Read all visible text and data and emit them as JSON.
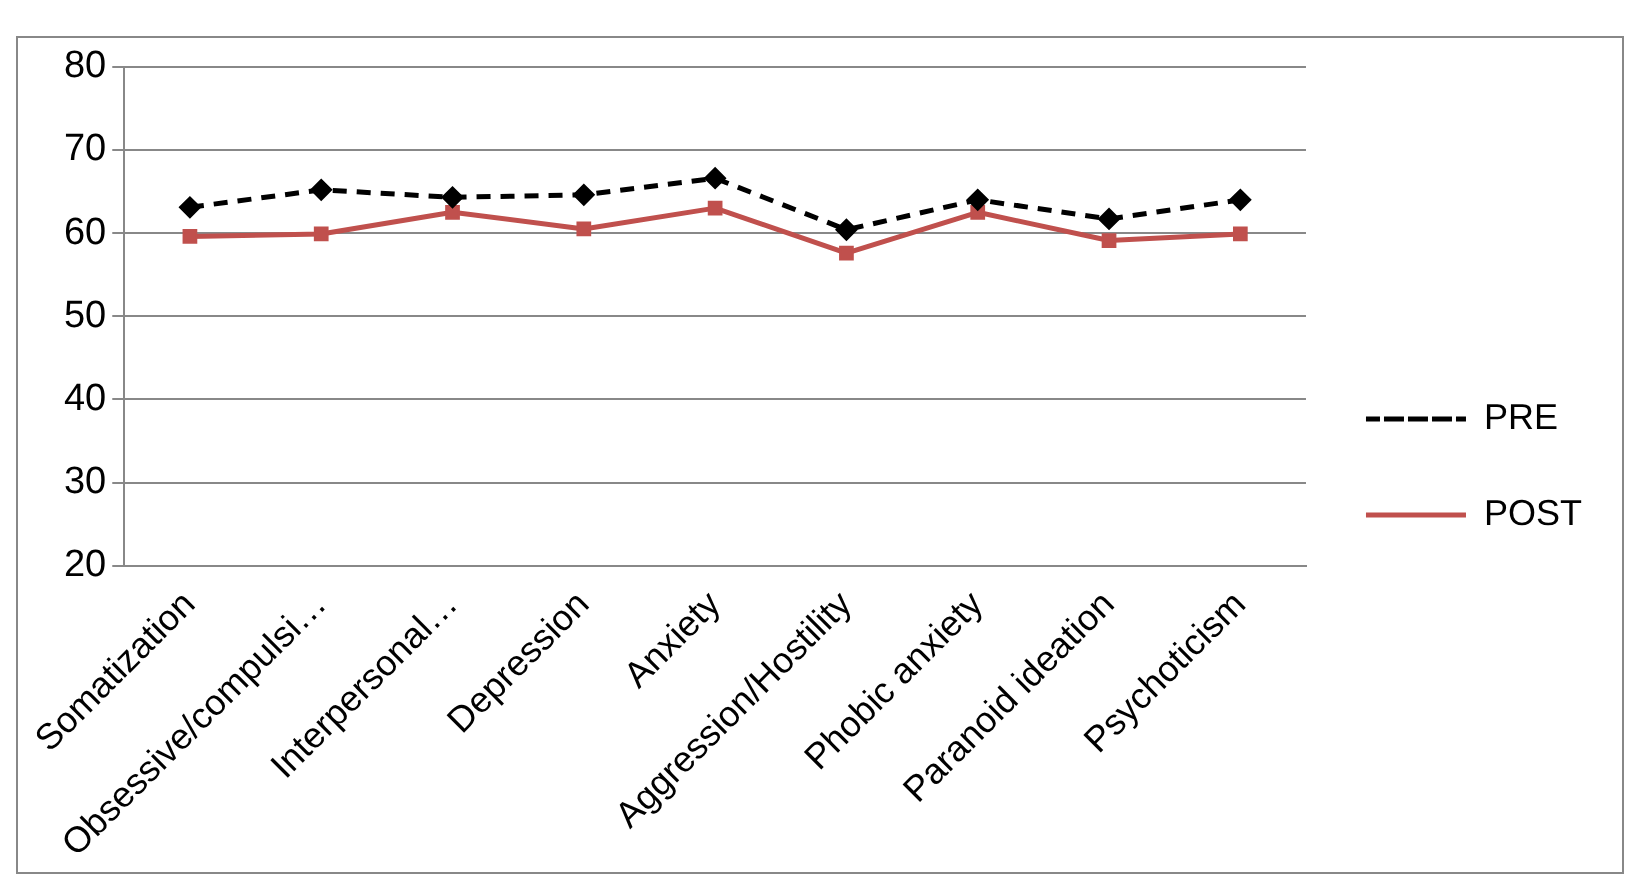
{
  "chart_data": {
    "type": "line",
    "categories": [
      "Somatization",
      "Obsessive/compulsi…",
      "Interpersonal…",
      "Depression",
      "Anxiety",
      "Aggression/Hostility",
      "Phobic anxiety",
      "Paranoid ideation",
      "Psychoticism"
    ],
    "series": [
      {
        "name": "PRE",
        "color": "#000000",
        "marker": "diamond",
        "line_style": "dashed",
        "values": [
          63.1,
          65.2,
          64.3,
          64.6,
          66.6,
          60.4,
          64.0,
          61.7,
          64.0
        ]
      },
      {
        "name": "POST",
        "color": "#c0504d",
        "marker": "square",
        "line_style": "solid",
        "values": [
          59.6,
          59.9,
          62.5,
          60.5,
          63.0,
          57.6,
          62.5,
          59.1,
          59.9
        ]
      }
    ],
    "ylim": [
      20,
      80
    ],
    "yticks": [
      20,
      30,
      40,
      50,
      60,
      70,
      80
    ],
    "grid": "y",
    "legend": "right"
  }
}
